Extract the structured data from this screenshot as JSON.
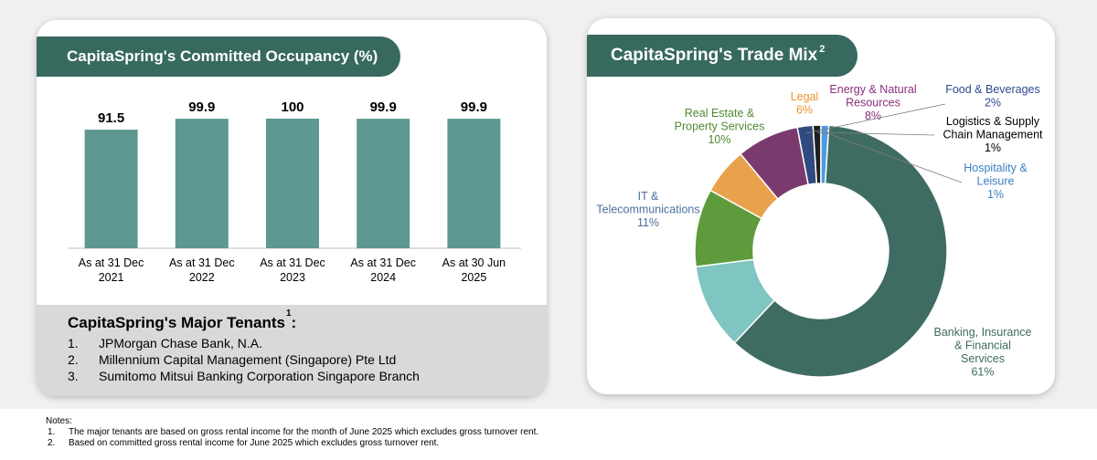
{
  "occupancy": {
    "title": "CapitaSpring's Committed Occupancy (%)"
  },
  "trade_mix": {
    "title": "CapitaSpring's Trade Mix",
    "title_sup": "2"
  },
  "tenants": {
    "title": "CapitaSpring's Major Tenants",
    "title_sup": "1",
    "items": [
      {
        "num": "1.",
        "name": "JPMorgan Chase Bank, N.A."
      },
      {
        "num": "2.",
        "name": "Millennium Capital Management (Singapore) Pte Ltd"
      },
      {
        "num": "3.",
        "name": "Sumitomo Mitsui Banking Corporation Singapore Branch"
      }
    ]
  },
  "notes": {
    "heading": "Notes:",
    "items": [
      {
        "num": "1.",
        "text": "The major tenants are based on gross rental income for the month of June 2025 which excludes gross turnover rent."
      },
      {
        "num": "2.",
        "text": "Based on committed gross rental income for June 2025 which excludes gross turnover rent."
      }
    ]
  },
  "colors": {
    "header_bg": "#37695f",
    "bar": "#5d9891"
  },
  "chart_data": [
    {
      "type": "bar",
      "categories": [
        [
          "As at 31 Dec",
          "2021"
        ],
        [
          "As at 31 Dec",
          "2022"
        ],
        [
          "As at 31 Dec",
          "2023"
        ],
        [
          "As at 31 Dec",
          "2024"
        ],
        [
          "As at 30 Jun",
          "2025"
        ]
      ],
      "values": [
        91.5,
        99.9,
        100,
        99.9,
        99.9
      ],
      "value_labels": [
        "91.5",
        "99.9",
        "100",
        "99.9",
        "99.9"
      ],
      "ylim": [
        0,
        100
      ],
      "grid": false,
      "legend": "none"
    },
    {
      "type": "pie",
      "donut": true,
      "slices": [
        {
          "label": [
            "Banking, Insurance",
            "& Financial",
            "Services"
          ],
          "pct": "61%",
          "value": 61,
          "color": "#3e6b62",
          "label_color": "#3e6b62"
        },
        {
          "label": [
            "IT &",
            "Telecommunications"
          ],
          "pct": "11%",
          "value": 11,
          "color": "#7fc5c1",
          "label_color": "#4a6f9d"
        },
        {
          "label": [
            "Real Estate &",
            "Property Services"
          ],
          "pct": "10%",
          "value": 10,
          "color": "#5d9b3c",
          "label_color": "#4e8a33"
        },
        {
          "label": [
            "Legal"
          ],
          "pct": "6%",
          "value": 6,
          "color": "#e9a24c",
          "label_color": "#e9952f"
        },
        {
          "label": [
            "Energy & Natural",
            "Resources"
          ],
          "pct": "8%",
          "value": 8,
          "color": "#7b3a6e",
          "label_color": "#8a2f7d"
        },
        {
          "label": [
            "Food & Beverages"
          ],
          "pct": "2%",
          "value": 2,
          "color": "#2e4a7e",
          "label_color": "#2e4a8e"
        },
        {
          "label": [
            "Logistics & Supply",
            "Chain Management"
          ],
          "pct": "1%",
          "value": 1,
          "color": "#1f1f1f",
          "label_color": "#000000"
        },
        {
          "label": [
            "Hospitality &",
            "Leisure"
          ],
          "pct": "1%",
          "value": 1,
          "color": "#4d9be0",
          "label_color": "#3d7fc1"
        }
      ]
    }
  ]
}
